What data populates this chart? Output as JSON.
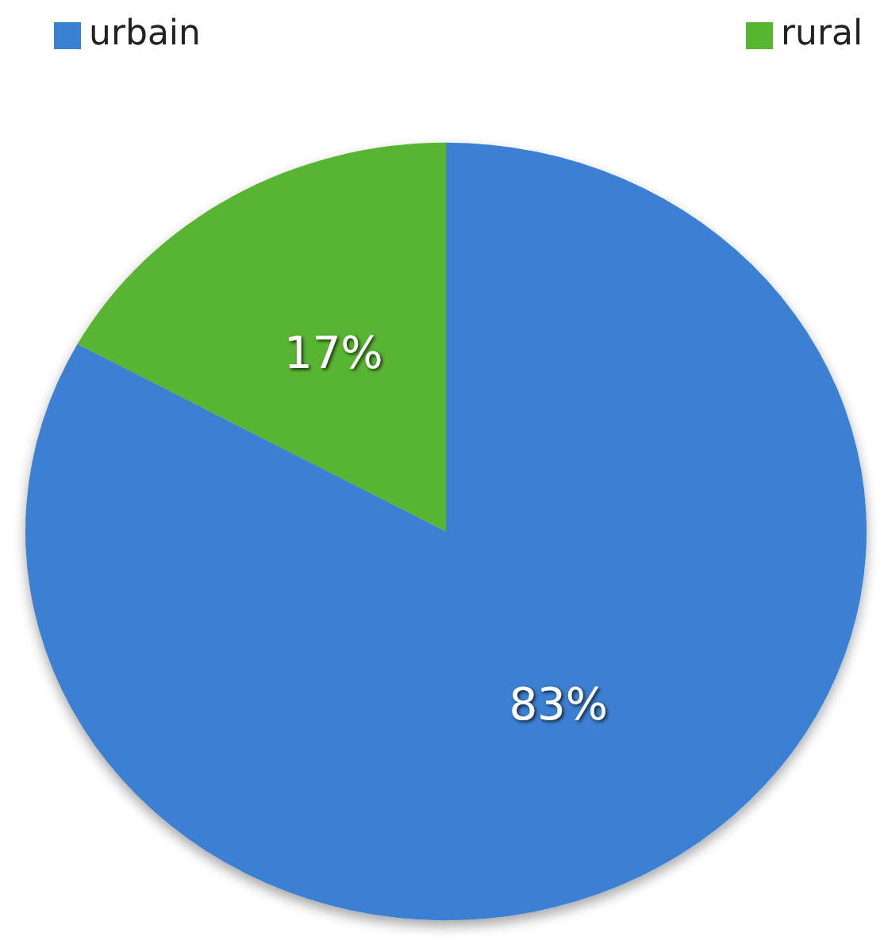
{
  "chart_data": {
    "type": "pie",
    "categories": [
      "urbain",
      "rural"
    ],
    "values": [
      83,
      17
    ],
    "colors": [
      "#3a80d2",
      "#58b530"
    ],
    "value_labels": [
      "83%",
      "17%"
    ],
    "legend": "top"
  }
}
